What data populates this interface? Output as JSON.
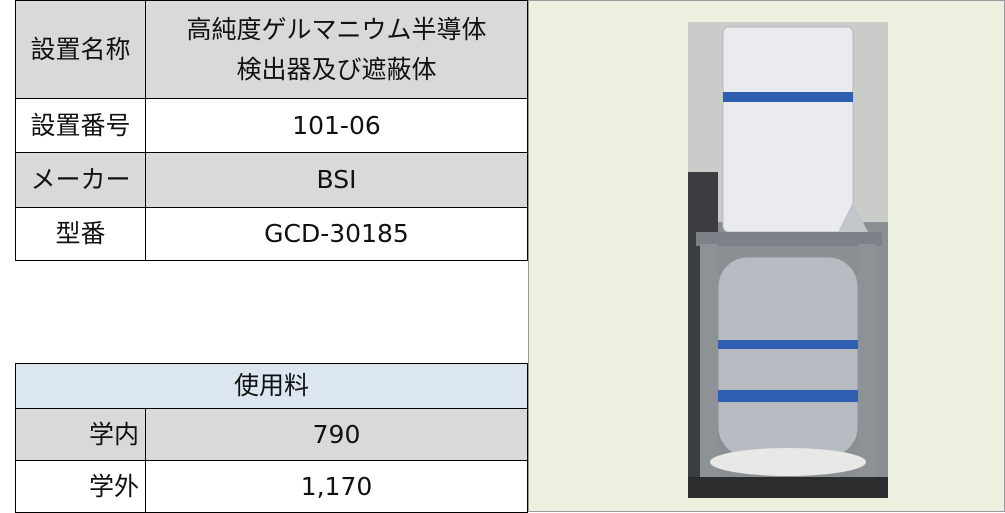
{
  "equipment": {
    "rows": [
      {
        "label": "設置名称",
        "value": [
          "高純度ゲルマニウム半導体",
          "検出器及び遮蔽体"
        ]
      },
      {
        "label": "設置番号",
        "value": "101-06"
      },
      {
        "label": "メーカー",
        "value": "BSI"
      },
      {
        "label": "型番",
        "value": "GCD-30185"
      }
    ]
  },
  "fees": {
    "title": "使用料",
    "rows": [
      {
        "label": "学内",
        "value": "790"
      },
      {
        "label": "学外",
        "value": "1,170"
      }
    ]
  }
}
